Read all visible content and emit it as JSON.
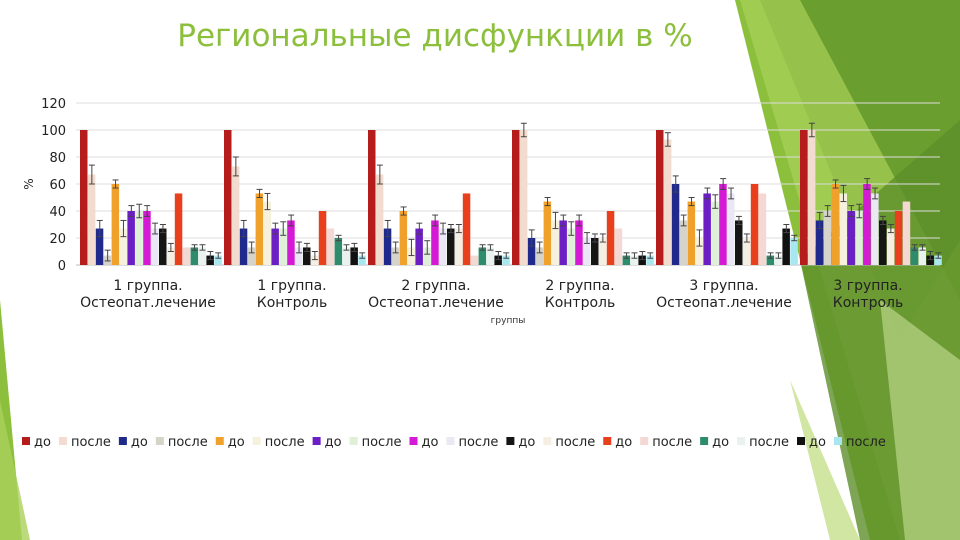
{
  "slide": {
    "title": "Региональные дисфункции в %",
    "accent": "#8bbf3c"
  },
  "chart_data": {
    "type": "bar",
    "title": "",
    "xlabel": "группы",
    "ylabel": "%",
    "ylim": [
      0,
      120
    ],
    "yticks": [
      0,
      20,
      40,
      60,
      80,
      100,
      120
    ],
    "grid": true,
    "legend_position": "bottom",
    "categories": [
      "1 группа. Остеопат.лечение",
      "1 группа. Контроль",
      "2 группа. Остеопат.лечение",
      "2 группа. Контроль",
      "3 группа. Остеопат.лечение",
      "3 группа. Контроль"
    ],
    "series": [
      {
        "name": "до",
        "color": "#b51c1c",
        "values": [
          100,
          100,
          100,
          100,
          100,
          100
        ],
        "errors": [
          0,
          0,
          0,
          0,
          0,
          0
        ]
      },
      {
        "name": "после",
        "color": "#f2dccf",
        "values": [
          67,
          73,
          67,
          100,
          93,
          100
        ],
        "errors": [
          7,
          7,
          7,
          5,
          5,
          5
        ]
      },
      {
        "name": "до",
        "color": "#1f2a8c",
        "values": [
          27,
          27,
          27,
          20,
          60,
          33
        ],
        "errors": [
          6,
          6,
          6,
          6,
          6,
          6
        ]
      },
      {
        "name": "после",
        "color": "#d6d3c9",
        "values": [
          7,
          13,
          13,
          13,
          33,
          40
        ],
        "errors": [
          4,
          4,
          4,
          4,
          4,
          4
        ]
      },
      {
        "name": "до",
        "color": "#f0a12b",
        "values": [
          60,
          53,
          40,
          47,
          47,
          60
        ],
        "errors": [
          3,
          3,
          3,
          3,
          3,
          3
        ]
      },
      {
        "name": "после",
        "color": "#f5f1dd",
        "values": [
          27,
          47,
          13,
          33,
          20,
          53
        ],
        "errors": [
          6,
          6,
          6,
          6,
          6,
          6
        ]
      },
      {
        "name": "до",
        "color": "#6b1fc4",
        "values": [
          40,
          27,
          27,
          33,
          53,
          40
        ],
        "errors": [
          4,
          4,
          4,
          4,
          4,
          4
        ]
      },
      {
        "name": "после",
        "color": "#dff0d8",
        "values": [
          40,
          27,
          13,
          27,
          47,
          40
        ],
        "errors": [
          5,
          5,
          5,
          5,
          5,
          5
        ]
      },
      {
        "name": "до",
        "color": "#d41ad4",
        "values": [
          40,
          33,
          33,
          33,
          60,
          60
        ],
        "errors": [
          4,
          4,
          4,
          4,
          4,
          4
        ]
      },
      {
        "name": "после",
        "color": "#eae8f3",
        "values": [
          27,
          13,
          27,
          20,
          53,
          53
        ],
        "errors": [
          4,
          4,
          4,
          4,
          4,
          4
        ]
      },
      {
        "name": "до",
        "color": "#151515",
        "values": [
          27,
          13,
          27,
          20,
          33,
          33
        ],
        "errors": [
          3,
          3,
          3,
          3,
          3,
          3
        ]
      },
      {
        "name": "после",
        "color": "#f4efe2",
        "values": [
          13,
          7,
          27,
          20,
          20,
          27
        ],
        "errors": [
          3,
          3,
          3,
          3,
          3,
          3
        ]
      },
      {
        "name": "до",
        "color": "#e8401c",
        "values": [
          53,
          40,
          53,
          40,
          60,
          40
        ],
        "errors": [
          0,
          0,
          0,
          0,
          0,
          0
        ]
      },
      {
        "name": "после",
        "color": "#f3d8d3",
        "values": [
          13,
          27,
          7,
          27,
          53,
          47
        ],
        "errors": [
          0,
          0,
          0,
          0,
          0,
          0
        ]
      },
      {
        "name": "до",
        "color": "#2e8b6b",
        "values": [
          13,
          20,
          13,
          7,
          7,
          13
        ],
        "errors": [
          2,
          2,
          2,
          2,
          2,
          2
        ]
      },
      {
        "name": "после",
        "color": "#e9f2ef",
        "values": [
          13,
          13,
          13,
          7,
          7,
          13
        ],
        "errors": [
          2,
          2,
          2,
          2,
          2,
          2
        ]
      },
      {
        "name": "до",
        "color": "#111111",
        "values": [
          7,
          13,
          7,
          7,
          27,
          7
        ],
        "errors": [
          3,
          3,
          3,
          3,
          3,
          3
        ]
      },
      {
        "name": "после",
        "color": "#a8e6f0",
        "values": [
          7,
          7,
          7,
          7,
          20,
          7
        ],
        "errors": [
          2,
          2,
          2,
          2,
          2,
          2
        ]
      }
    ]
  }
}
